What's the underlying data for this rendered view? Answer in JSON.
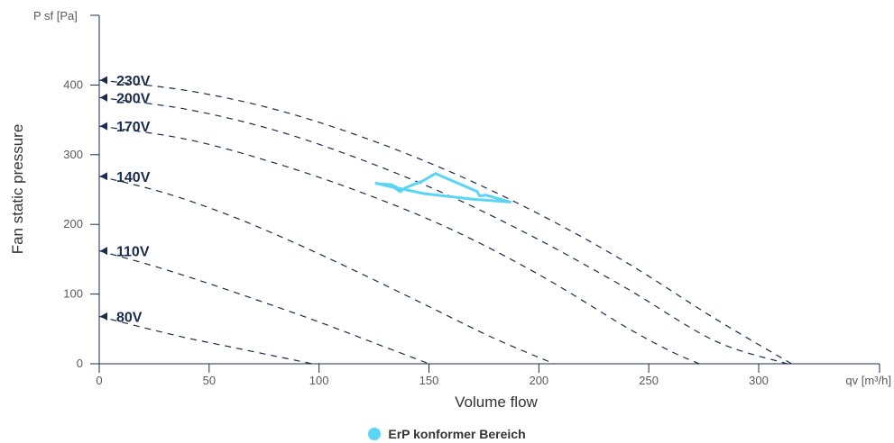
{
  "chart_data": {
    "type": "line",
    "xlabel": "Volume flow",
    "ylabel": "Fan static pressure",
    "x_unit_label": "qv [m³/h]",
    "y_unit_label": "P sf [Pa]",
    "xlim": [
      0,
      355
    ],
    "ylim": [
      0,
      500
    ],
    "x_ticks": [
      0,
      50,
      100,
      150,
      200,
      250,
      300
    ],
    "y_ticks": [
      0,
      100,
      200,
      300,
      400
    ],
    "colors": {
      "fan_curve": "#1a2c4e",
      "erp_area": "#5bd4f6",
      "axis": "#1a2c4e"
    },
    "series": [
      {
        "name": "230V",
        "x": [
          0,
          40,
          80,
          120,
          160,
          200,
          240,
          280,
          315
        ],
        "y": [
          407,
          392,
          365,
          325,
          275,
          215,
          145,
          65,
          0
        ]
      },
      {
        "name": "200V",
        "x": [
          0,
          40,
          80,
          120,
          160,
          200,
          240,
          280,
          313
        ],
        "y": [
          382,
          365,
          335,
          292,
          240,
          178,
          108,
          33,
          0
        ]
      },
      {
        "name": "170V",
        "x": [
          0,
          40,
          80,
          120,
          160,
          200,
          240,
          260,
          273
        ],
        "y": [
          341,
          322,
          288,
          245,
          193,
          128,
          52,
          18,
          0
        ]
      },
      {
        "name": "140V",
        "x": [
          0,
          30,
          60,
          90,
          120,
          150,
          180,
          207
        ],
        "y": [
          269,
          245,
          212,
          172,
          128,
          82,
          36,
          0
        ]
      },
      {
        "name": "110V",
        "x": [
          0,
          25,
          50,
          75,
          100,
          125,
          150
        ],
        "y": [
          162,
          140,
          115,
          88,
          60,
          30,
          0
        ]
      },
      {
        "name": "80V",
        "x": [
          0,
          20,
          40,
          60,
          80,
          97
        ],
        "y": [
          68,
          52,
          37,
          24,
          11,
          0
        ]
      }
    ],
    "erp_area": {
      "name": "ErP konformer Bereich",
      "x": [
        126,
        134,
        137,
        139,
        142,
        147,
        153,
        172,
        173,
        176,
        187,
        170,
        148,
        139,
        136,
        133,
        128,
        126
      ],
      "y": [
        259,
        253,
        247,
        252,
        256,
        262,
        273,
        247,
        241,
        242,
        232,
        236,
        244,
        250,
        252,
        257,
        258,
        259
      ]
    }
  }
}
